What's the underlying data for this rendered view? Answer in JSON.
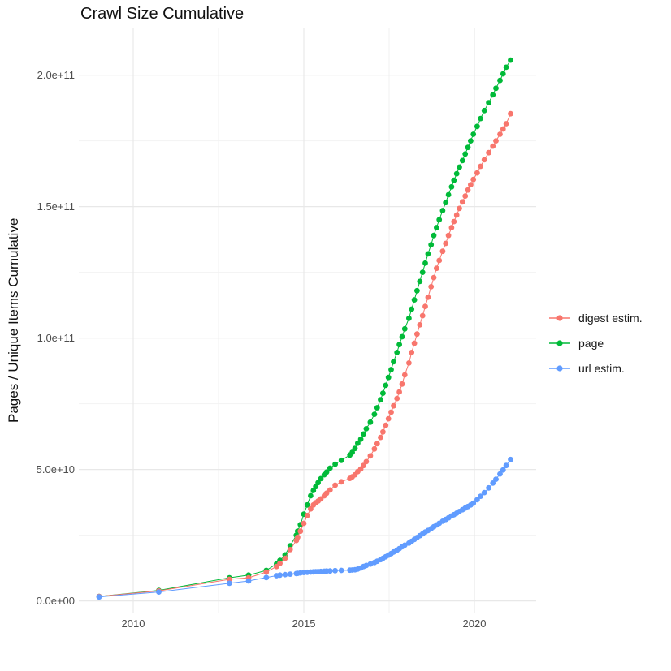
{
  "chart_data": {
    "type": "scatter",
    "title": "Crawl Size Cumulative",
    "xlabel": "",
    "ylabel": "Pages / Unique Items Cumulative",
    "grid": true,
    "legend_position": "right",
    "value_scale": 1000000000,
    "value_scale_note": "series point values are in billions (1e9)",
    "xlim": [
      2008.4,
      2021.85
    ],
    "ylim": [
      -4.5,
      217.8
    ],
    "x_ticks": [
      {
        "label": "2010",
        "value": 2010
      },
      {
        "label": "2015",
        "value": 2015
      },
      {
        "label": "2020",
        "value": 2020
      }
    ],
    "x_minor_ticks": [
      2012.5,
      2017.5
    ],
    "y_ticks": [
      {
        "label": "0.0e+00",
        "value": 0
      },
      {
        "label": "5.0e+10",
        "value": 50
      },
      {
        "label": "1.0e+11",
        "value": 100
      },
      {
        "label": "1.5e+11",
        "value": 150
      },
      {
        "label": "2.0e+11",
        "value": 200
      }
    ],
    "y_minor_ticks": [
      25,
      75,
      125,
      175
    ],
    "series": [
      {
        "name": "digest estim.",
        "color": "#F8766D",
        "points": [
          [
            2009.0,
            1.7
          ],
          [
            2010.75,
            3.8
          ],
          [
            2012.82,
            8.2
          ],
          [
            2013.38,
            8.8
          ],
          [
            2013.9,
            11.0
          ],
          [
            2014.2,
            13.1
          ],
          [
            2014.3,
            14.3
          ],
          [
            2014.45,
            16.2
          ],
          [
            2014.6,
            19.5
          ],
          [
            2014.78,
            23.0
          ],
          [
            2014.82,
            24.2
          ],
          [
            2014.9,
            26.5
          ],
          [
            2015.0,
            29.5
          ],
          [
            2015.1,
            32.5
          ],
          [
            2015.2,
            35.0
          ],
          [
            2015.28,
            36.5
          ],
          [
            2015.35,
            37.3
          ],
          [
            2015.42,
            38.0
          ],
          [
            2015.5,
            38.8
          ],
          [
            2015.6,
            40.0
          ],
          [
            2015.67,
            41.0
          ],
          [
            2015.77,
            42.2
          ],
          [
            2015.92,
            44.0
          ],
          [
            2016.1,
            45.3
          ],
          [
            2016.35,
            46.6
          ],
          [
            2016.42,
            47.2
          ],
          [
            2016.5,
            48.0
          ],
          [
            2016.58,
            49.2
          ],
          [
            2016.67,
            50.2
          ],
          [
            2016.75,
            51.5
          ],
          [
            2016.83,
            53.0
          ],
          [
            2016.95,
            55.2
          ],
          [
            2017.07,
            57.8
          ],
          [
            2017.15,
            59.8
          ],
          [
            2017.25,
            62.2
          ],
          [
            2017.32,
            64.3
          ],
          [
            2017.4,
            66.8
          ],
          [
            2017.48,
            69.3
          ],
          [
            2017.56,
            71.8
          ],
          [
            2017.63,
            74.2
          ],
          [
            2017.73,
            77.0
          ],
          [
            2017.8,
            79.5
          ],
          [
            2017.88,
            82.5
          ],
          [
            2017.96,
            86.0
          ],
          [
            2018.08,
            90.5
          ],
          [
            2018.16,
            94.5
          ],
          [
            2018.24,
            98.0
          ],
          [
            2018.32,
            101.5
          ],
          [
            2018.4,
            105.0
          ],
          [
            2018.48,
            108.5
          ],
          [
            2018.56,
            112.0
          ],
          [
            2018.64,
            115.5
          ],
          [
            2018.73,
            119.5
          ],
          [
            2018.81,
            123.0
          ],
          [
            2018.89,
            126.5
          ],
          [
            2018.97,
            129.5
          ],
          [
            2019.07,
            133.0
          ],
          [
            2019.16,
            136.0
          ],
          [
            2019.24,
            139.0
          ],
          [
            2019.33,
            142.0
          ],
          [
            2019.4,
            144.3
          ],
          [
            2019.48,
            146.8
          ],
          [
            2019.56,
            149.3
          ],
          [
            2019.65,
            151.8
          ],
          [
            2019.73,
            154.0
          ],
          [
            2019.81,
            156.3
          ],
          [
            2019.89,
            158.3
          ],
          [
            2019.97,
            160.3
          ],
          [
            2020.08,
            162.8
          ],
          [
            2020.18,
            165.3
          ],
          [
            2020.29,
            167.8
          ],
          [
            2020.42,
            170.5
          ],
          [
            2020.54,
            173.0
          ],
          [
            2020.63,
            175.0
          ],
          [
            2020.75,
            177.5
          ],
          [
            2020.84,
            179.5
          ],
          [
            2020.93,
            181.5
          ],
          [
            2021.06,
            185.3
          ]
        ]
      },
      {
        "name": "page",
        "color": "#00BA38",
        "points": [
          [
            2009.0,
            1.7
          ],
          [
            2010.75,
            4.0
          ],
          [
            2012.82,
            8.8
          ],
          [
            2013.38,
            9.8
          ],
          [
            2013.9,
            11.6
          ],
          [
            2014.2,
            14.1
          ],
          [
            2014.3,
            15.4
          ],
          [
            2014.45,
            17.5
          ],
          [
            2014.6,
            21.0
          ],
          [
            2014.78,
            25.0
          ],
          [
            2014.82,
            26.5
          ],
          [
            2014.9,
            29.0
          ],
          [
            2015.0,
            33.0
          ],
          [
            2015.1,
            36.5
          ],
          [
            2015.2,
            40.0
          ],
          [
            2015.28,
            42.0
          ],
          [
            2015.35,
            43.5
          ],
          [
            2015.42,
            45.0
          ],
          [
            2015.5,
            46.5
          ],
          [
            2015.6,
            48.0
          ],
          [
            2015.67,
            49.0
          ],
          [
            2015.77,
            50.5
          ],
          [
            2015.92,
            52.0
          ],
          [
            2016.1,
            53.5
          ],
          [
            2016.35,
            55.5
          ],
          [
            2016.42,
            56.5
          ],
          [
            2016.5,
            58.0
          ],
          [
            2016.58,
            60.0
          ],
          [
            2016.67,
            61.5
          ],
          [
            2016.75,
            63.5
          ],
          [
            2016.83,
            65.5
          ],
          [
            2016.95,
            68.0
          ],
          [
            2017.07,
            71.0
          ],
          [
            2017.15,
            73.5
          ],
          [
            2017.25,
            76.5
          ],
          [
            2017.32,
            79.0
          ],
          [
            2017.4,
            82.0
          ],
          [
            2017.48,
            85.0
          ],
          [
            2017.56,
            88.0
          ],
          [
            2017.63,
            91.0
          ],
          [
            2017.73,
            94.5
          ],
          [
            2017.8,
            97.5
          ],
          [
            2017.88,
            100.5
          ],
          [
            2017.96,
            103.5
          ],
          [
            2018.08,
            107.5
          ],
          [
            2018.16,
            111.0
          ],
          [
            2018.24,
            114.5
          ],
          [
            2018.32,
            118.0
          ],
          [
            2018.4,
            121.5
          ],
          [
            2018.48,
            125.0
          ],
          [
            2018.56,
            128.5
          ],
          [
            2018.64,
            132.0
          ],
          [
            2018.73,
            135.5
          ],
          [
            2018.81,
            139.0
          ],
          [
            2018.89,
            142.0
          ],
          [
            2018.97,
            145.0
          ],
          [
            2019.07,
            148.5
          ],
          [
            2019.16,
            151.5
          ],
          [
            2019.24,
            154.5
          ],
          [
            2019.33,
            157.5
          ],
          [
            2019.4,
            160.0
          ],
          [
            2019.48,
            162.5
          ],
          [
            2019.56,
            165.0
          ],
          [
            2019.65,
            167.5
          ],
          [
            2019.73,
            170.0
          ],
          [
            2019.81,
            172.5
          ],
          [
            2019.89,
            175.0
          ],
          [
            2019.97,
            177.5
          ],
          [
            2020.08,
            180.5
          ],
          [
            2020.18,
            183.5
          ],
          [
            2020.29,
            186.5
          ],
          [
            2020.42,
            189.5
          ],
          [
            2020.54,
            192.5
          ],
          [
            2020.63,
            195.0
          ],
          [
            2020.75,
            198.0
          ],
          [
            2020.84,
            200.5
          ],
          [
            2020.93,
            203.0
          ],
          [
            2021.06,
            205.7
          ]
        ]
      },
      {
        "name": "url estim.",
        "color": "#619CFF",
        "points": [
          [
            2009.0,
            1.5
          ],
          [
            2010.75,
            3.4
          ],
          [
            2012.82,
            6.7
          ],
          [
            2013.38,
            7.6
          ],
          [
            2013.9,
            8.9
          ],
          [
            2014.2,
            9.6
          ],
          [
            2014.3,
            9.8
          ],
          [
            2014.45,
            10.0
          ],
          [
            2014.6,
            10.2
          ],
          [
            2014.78,
            10.4
          ],
          [
            2014.82,
            10.5
          ],
          [
            2014.9,
            10.65
          ],
          [
            2015.0,
            10.8
          ],
          [
            2015.1,
            10.9
          ],
          [
            2015.2,
            11.0
          ],
          [
            2015.28,
            11.05
          ],
          [
            2015.35,
            11.1
          ],
          [
            2015.42,
            11.15
          ],
          [
            2015.5,
            11.2
          ],
          [
            2015.6,
            11.3
          ],
          [
            2015.67,
            11.35
          ],
          [
            2015.77,
            11.4
          ],
          [
            2015.92,
            11.5
          ],
          [
            2016.1,
            11.6
          ],
          [
            2016.35,
            11.7
          ],
          [
            2016.42,
            11.75
          ],
          [
            2016.5,
            11.85
          ],
          [
            2016.58,
            12.1
          ],
          [
            2016.67,
            12.5
          ],
          [
            2016.75,
            13.1
          ],
          [
            2016.83,
            13.5
          ],
          [
            2016.95,
            14.0
          ],
          [
            2017.07,
            14.6
          ],
          [
            2017.15,
            15.1
          ],
          [
            2017.25,
            15.7
          ],
          [
            2017.32,
            16.2
          ],
          [
            2017.4,
            16.8
          ],
          [
            2017.48,
            17.4
          ],
          [
            2017.56,
            18.0
          ],
          [
            2017.63,
            18.6
          ],
          [
            2017.73,
            19.3
          ],
          [
            2017.8,
            19.9
          ],
          [
            2017.88,
            20.6
          ],
          [
            2017.96,
            21.2
          ],
          [
            2018.08,
            22.0
          ],
          [
            2018.16,
            22.7
          ],
          [
            2018.24,
            23.4
          ],
          [
            2018.32,
            24.1
          ],
          [
            2018.4,
            24.8
          ],
          [
            2018.48,
            25.5
          ],
          [
            2018.56,
            26.2
          ],
          [
            2018.64,
            26.8
          ],
          [
            2018.73,
            27.5
          ],
          [
            2018.81,
            28.2
          ],
          [
            2018.89,
            28.9
          ],
          [
            2018.97,
            29.5
          ],
          [
            2019.07,
            30.3
          ],
          [
            2019.16,
            31.0
          ],
          [
            2019.24,
            31.6
          ],
          [
            2019.33,
            32.3
          ],
          [
            2019.4,
            32.8
          ],
          [
            2019.48,
            33.4
          ],
          [
            2019.56,
            34.0
          ],
          [
            2019.65,
            34.7
          ],
          [
            2019.73,
            35.3
          ],
          [
            2019.81,
            35.9
          ],
          [
            2019.89,
            36.5
          ],
          [
            2019.97,
            37.2
          ],
          [
            2020.08,
            38.5
          ],
          [
            2020.18,
            39.8
          ],
          [
            2020.29,
            41.2
          ],
          [
            2020.42,
            43.0
          ],
          [
            2020.54,
            44.8
          ],
          [
            2020.63,
            46.3
          ],
          [
            2020.75,
            48.3
          ],
          [
            2020.84,
            49.8
          ],
          [
            2020.93,
            51.5
          ],
          [
            2021.06,
            53.8
          ]
        ]
      }
    ]
  }
}
